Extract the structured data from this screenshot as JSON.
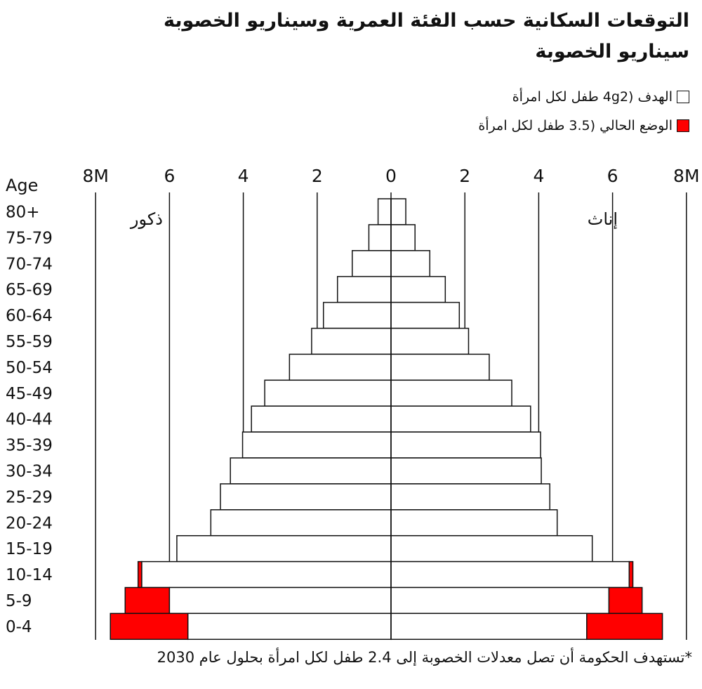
{
  "title": "التوقعات السكانية حسب الفئة العمرية وسيناريو الخصوبة",
  "subtitle": "سيناريو الخصوبة",
  "footnote": "*تستهدف الحكومة أن تصل معدلات الخصوبة إلى 2.4 طفل لكل امرأة بحلول عام 2030",
  "legend": [
    {
      "label": "الهدف (4g2 طفل لكل امرأة",
      "color": "#ffffff"
    },
    {
      "label": "الوضع الحالي (3.5 طفل لكل امرأة",
      "color": "#ff0000"
    }
  ],
  "colors": {
    "target": "#ffffff",
    "current": "#ff0000",
    "outline": "#111111"
  },
  "chart_data": {
    "type": "bar",
    "orientation": "horizontal population pyramid",
    "axis_label": "Age",
    "left_label": "ذكور",
    "right_label": "إناث",
    "xlim": [
      -8,
      8
    ],
    "x_ticks": [
      {
        "value": -8,
        "label": "8M"
      },
      {
        "value": -6,
        "label": "6"
      },
      {
        "value": -4,
        "label": "4"
      },
      {
        "value": -2,
        "label": "2"
      },
      {
        "value": 0,
        "label": "0"
      },
      {
        "value": 2,
        "label": "2"
      },
      {
        "value": 4,
        "label": "4"
      },
      {
        "value": 6,
        "label": "6"
      },
      {
        "value": 8,
        "label": "8M"
      }
    ],
    "categories": [
      "80+",
      "75-79",
      "70-74",
      "65-69",
      "60-64",
      "55-59",
      "50-54",
      "45-49",
      "40-44",
      "35-39",
      "30-34",
      "25-29",
      "20-24",
      "15-19",
      "10-14",
      "5-9",
      "0-4"
    ],
    "series": [
      {
        "name": "الهدف (4g2 طفل لكل امرأة",
        "side": "male",
        "values": [
          0.35,
          0.6,
          1.05,
          1.45,
          1.83,
          2.15,
          2.75,
          3.42,
          3.78,
          4.02,
          4.35,
          4.62,
          4.88,
          5.8,
          6.75,
          6.0,
          5.5
        ]
      },
      {
        "name": "الوضع الحالي (3.5 طفل لكل امرأة",
        "side": "male",
        "values": [
          0.35,
          0.6,
          1.05,
          1.45,
          1.83,
          2.15,
          2.75,
          3.42,
          3.78,
          4.02,
          4.35,
          4.62,
          4.88,
          5.8,
          6.85,
          7.2,
          7.6
        ]
      },
      {
        "name": "الهدف (4g2 طفل لكل امرأة",
        "side": "female",
        "values": [
          0.4,
          0.65,
          1.05,
          1.47,
          1.85,
          2.1,
          2.66,
          3.27,
          3.78,
          4.05,
          4.07,
          4.3,
          4.5,
          5.45,
          6.45,
          5.9,
          5.3
        ]
      },
      {
        "name": "الوضع الحالي (3.5 طفل لكل امرأة",
        "side": "female",
        "values": [
          0.4,
          0.65,
          1.05,
          1.47,
          1.85,
          2.1,
          2.66,
          3.27,
          3.78,
          4.05,
          4.07,
          4.3,
          4.5,
          5.45,
          6.55,
          6.8,
          7.35
        ]
      }
    ]
  }
}
